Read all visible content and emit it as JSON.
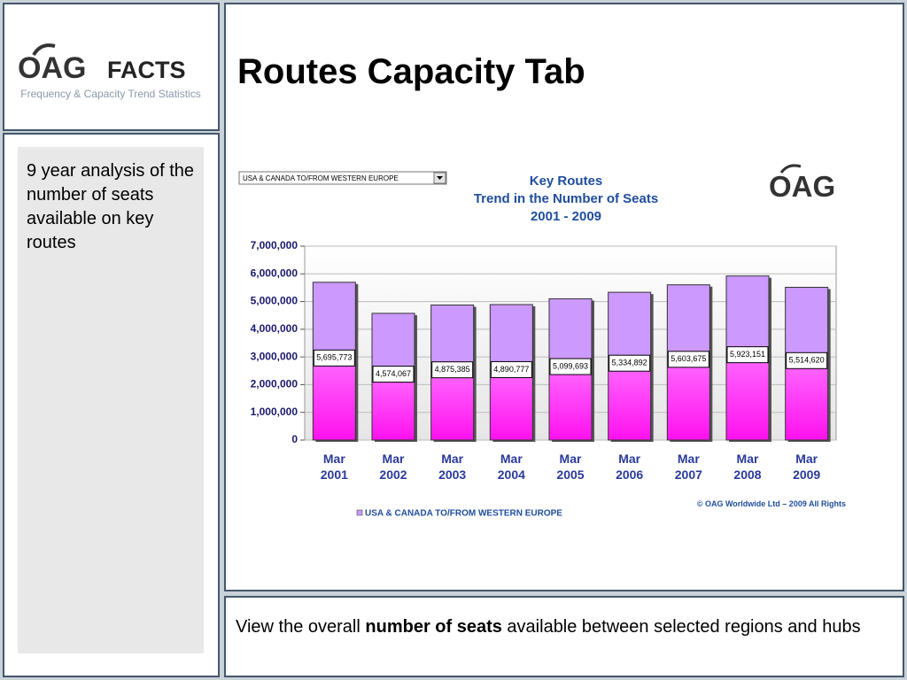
{
  "logo": {
    "brand": "OAG",
    "product": "FACTS",
    "tagline": "Frequency & Capacity Trend Statistics"
  },
  "title": "Routes Capacity Tab",
  "sidebar_text": "9 year analysis of the number of seats available on key routes",
  "footer_parts": [
    "View the overall ",
    "number of seats",
    " available between selected regions and hubs"
  ],
  "dropdown": {
    "selected": "USA & CANADA TO/FROM WESTERN EUROPE"
  },
  "chart_logo": "OAG",
  "chart_data": {
    "type": "bar",
    "title": "Key Routes",
    "subtitle": "Trend in the Number of Seats",
    "period": "2001 - 2009",
    "copyright": "© OAG Worldwide Ltd – 2009 All Rights",
    "categories": [
      "Mar 2001",
      "Mar 2002",
      "Mar 2003",
      "Mar 2004",
      "Mar 2005",
      "Mar 2006",
      "Mar 2007",
      "Mar 2008",
      "Mar 2009"
    ],
    "series": [
      {
        "name": "USA & CANADA TO/FROM WESTERN EUROPE",
        "color": "#cc99ff",
        "values": [
          5695773,
          4574067,
          4875385,
          4890777,
          5099693,
          5334892,
          5603675,
          5923151,
          5514620
        ],
        "value_labels": [
          "5,695,773",
          "4,574,067",
          "4,875,385",
          "4,890,777",
          "5,099,693",
          "5,334,892",
          "5,603,675",
          "5,923,151",
          "5,514,620"
        ]
      }
    ],
    "ylim": [
      0,
      7000000
    ],
    "yticks": [
      0,
      {
        "value": 1000000,
        "label": "1,000,000"
      },
      {
        "value": 2000000,
        "label": "2,000,000"
      },
      {
        "value": 3000000,
        "label": "3,000,000"
      },
      {
        "value": 4000000,
        "label": "4,000,000"
      },
      {
        "value": 5000000,
        "label": "5,000,000"
      },
      {
        "value": 6000000,
        "label": "6,000,000"
      },
      {
        "value": 7000000,
        "label": "7,000,000"
      }
    ],
    "grid": true,
    "legend": "bottom"
  }
}
